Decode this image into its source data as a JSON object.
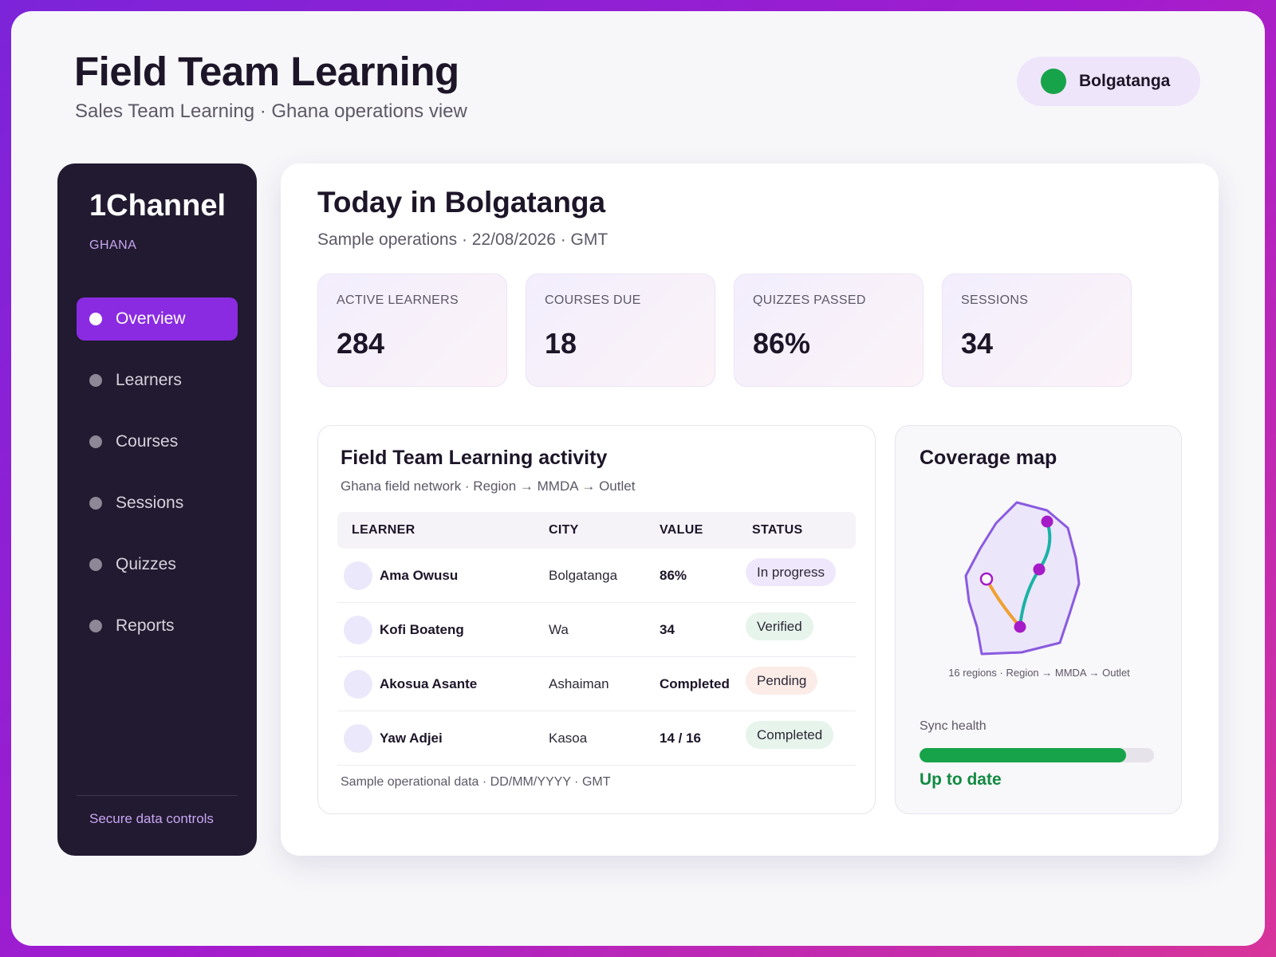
{
  "header": {
    "title": "Field Team Learning",
    "subtitle": "Sales Team Learning · Ghana operations view",
    "location": "Bolgatanga",
    "location_dot_color": "#17a34a"
  },
  "sidebar": {
    "brand": "1Channel",
    "region": "GHANA",
    "items": [
      {
        "label": "Overview",
        "active": true
      },
      {
        "label": "Learners",
        "active": false
      },
      {
        "label": "Courses",
        "active": false
      },
      {
        "label": "Sessions",
        "active": false
      },
      {
        "label": "Quizzes",
        "active": false
      },
      {
        "label": "Reports",
        "active": false
      }
    ],
    "footer": "Secure data controls"
  },
  "main": {
    "title": "Today in Bolgatanga",
    "subtitle": "Sample operations · 22/08/2026 · GMT",
    "stats": [
      {
        "label": "ACTIVE LEARNERS",
        "value": "284"
      },
      {
        "label": "COURSES DUE",
        "value": "18"
      },
      {
        "label": "QUIZZES PASSED",
        "value": "86%"
      },
      {
        "label": "SESSIONS",
        "value": "34"
      }
    ]
  },
  "activity": {
    "title": "Field Team Learning activity",
    "subtitle": "Ghana field network · Region → MMDA → Outlet",
    "columns": [
      "LEARNER",
      "CITY",
      "VALUE",
      "STATUS"
    ],
    "rows": [
      {
        "learner": "Ama Owusu",
        "city": "Bolgatanga",
        "value": "86%",
        "status": "In progress",
        "status_type": "progress"
      },
      {
        "learner": "Kofi Boateng",
        "city": "Wa",
        "value": "34",
        "status": "Verified",
        "status_type": "verified"
      },
      {
        "learner": "Akosua Asante",
        "city": "Ashaiman",
        "value": "Completed",
        "status": "Pending",
        "status_type": "pending"
      },
      {
        "learner": "Yaw Adjei",
        "city": "Kasoa",
        "value": "14 / 16",
        "status": "Completed",
        "status_type": "completed"
      }
    ],
    "footnote": "Sample operational data · DD/MM/YYYY · GMT"
  },
  "coverage": {
    "title": "Coverage map",
    "caption": "16 regions · Region → MMDA → Outlet",
    "sync_label": "Sync health",
    "sync_fraction": 0.88,
    "sync_status": "Up to date",
    "colors": {
      "outline": "#8a5ae0",
      "fill": "#ece6fb",
      "route_primary": "#19b3a6",
      "route_secondary": "#f0a030",
      "node": "#a51bc8"
    }
  },
  "accent_color": "#8a2be2"
}
